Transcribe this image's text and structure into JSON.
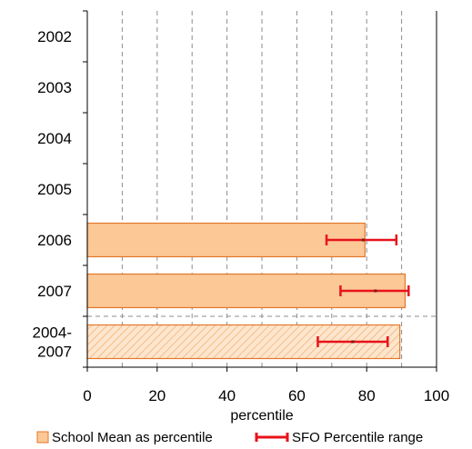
{
  "chart_data": {
    "type": "bar",
    "orientation": "horizontal",
    "title": "",
    "categories": [
      [
        "2002"
      ],
      [
        "2003"
      ],
      [
        "2004"
      ],
      [
        "2005"
      ],
      [
        "2006"
      ],
      [
        "2007"
      ],
      [
        "2004-",
        "2007"
      ]
    ],
    "series": [
      {
        "name": "School Mean as percentile",
        "values": [
          null,
          null,
          null,
          null,
          79.5,
          91,
          89.5
        ],
        "color": "#fbc896",
        "edge_color": "#e3782a",
        "hatched": [
          false,
          false,
          false,
          false,
          false,
          false,
          true
        ]
      },
      {
        "name": "SFO Percentile range",
        "type": "errorbar",
        "center": [
          null,
          null,
          null,
          null,
          79,
          82.5,
          76
        ],
        "low": [
          null,
          null,
          null,
          null,
          68.5,
          72.5,
          66
        ],
        "high": [
          null,
          null,
          null,
          null,
          88.5,
          92,
          86
        ],
        "color": "#e8131b"
      }
    ],
    "xlabel": "percentile",
    "xlim": [
      0,
      100
    ],
    "xticks": [
      0,
      20,
      40,
      60,
      80,
      100
    ],
    "grid": "vertical dashed",
    "legend_position": "bottom"
  }
}
